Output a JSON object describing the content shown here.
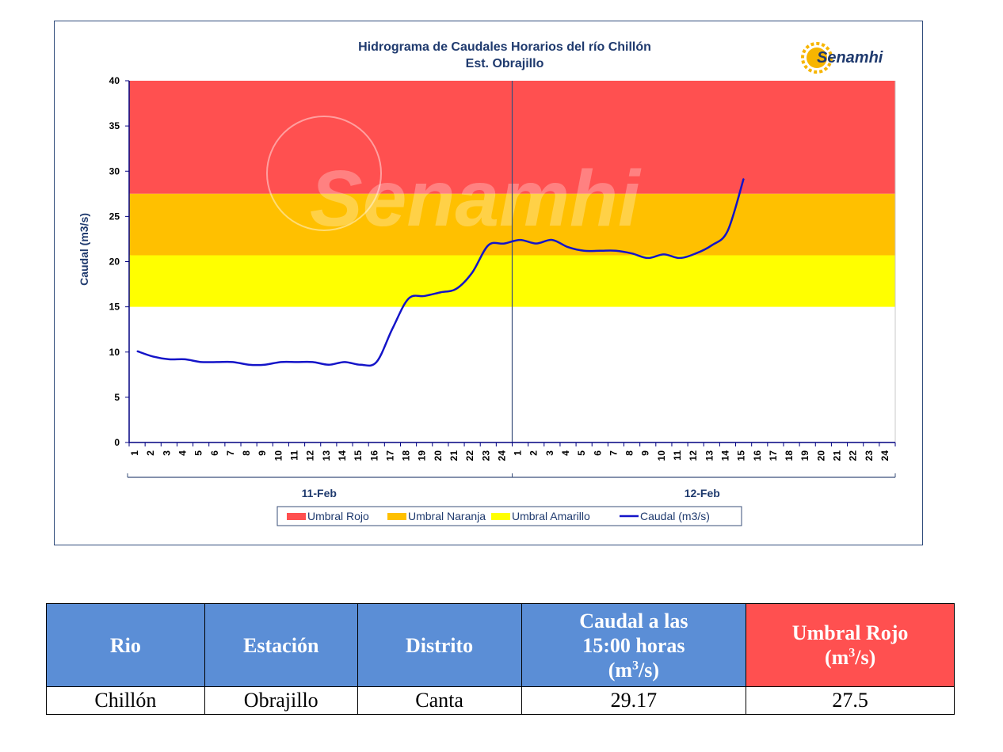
{
  "chart_data": {
    "type": "line",
    "title": "Hidrograma de Caudales Horarios del río Chillón",
    "subtitle": "Est. Obrajillo",
    "ylabel": "Caudal  (m3/s)",
    "ylim": [
      0,
      40
    ],
    "yticks": [
      0,
      5,
      10,
      15,
      20,
      25,
      30,
      35,
      40
    ],
    "x_tick_labels": [
      "1",
      "2",
      "3",
      "4",
      "5",
      "6",
      "7",
      "8",
      "9",
      "10",
      "11",
      "12",
      "13",
      "14",
      "15",
      "16",
      "17",
      "18",
      "19",
      "20",
      "21",
      "22",
      "23",
      "24",
      "1",
      "2",
      "3",
      "4",
      "5",
      "6",
      "7",
      "8",
      "9",
      "10",
      "11",
      "12",
      "13",
      "14",
      "15",
      "16",
      "17",
      "18",
      "19",
      "20",
      "21",
      "22",
      "23",
      "24"
    ],
    "date_labels": [
      "11-Feb",
      "12-Feb"
    ],
    "threshold_bands": [
      {
        "name": "Umbral Rojo",
        "from": 27.5,
        "to": 40,
        "color": "#ff5050"
      },
      {
        "name": "Umbral Naranja",
        "from": 20.7,
        "to": 27.5,
        "color": "#ffc000"
      },
      {
        "name": "Umbral Amarillo",
        "from": 15,
        "to": 20.7,
        "color": "#ffff00"
      }
    ],
    "series": [
      {
        "name": "Caudal (m3/s)",
        "color": "#1414c8",
        "values": [
          10.1,
          9.5,
          9.2,
          9.2,
          8.9,
          8.9,
          8.9,
          8.6,
          8.6,
          8.9,
          8.9,
          8.9,
          8.6,
          8.9,
          8.6,
          8.9,
          12.6,
          15.9,
          16.2,
          16.6,
          17.0,
          18.8,
          21.8,
          22.0,
          22.4,
          22.0,
          22.4,
          21.6,
          21.2,
          21.2,
          21.2,
          20.9,
          20.4,
          20.8,
          20.4,
          20.9,
          21.8,
          23.4,
          29.17
        ]
      }
    ],
    "legend": [
      "Umbral Rojo",
      "Umbral Naranja",
      "Umbral Amarillo",
      "Caudal (m3/s)"
    ],
    "legend_placement": "bottom-center",
    "grid": false
  },
  "logo": {
    "text": "Senamhi"
  },
  "watermark": {
    "text": "Senamhi"
  },
  "table": {
    "headers": [
      "Rio",
      "Estación",
      "Distrito",
      "Caudal a las 15:00 horas (m3/s)",
      "Umbral Rojo (m3/s)"
    ],
    "header_lines": {
      "caudal_1": "Caudal a las",
      "caudal_2": "15:00 horas",
      "caudal_3_pre": "(m",
      "caudal_3_sup": "3",
      "caudal_3_post": "/s)",
      "umbral_1": "Umbral Rojo",
      "umbral_2_pre": "(m",
      "umbral_2_sup": "3",
      "umbral_2_post": "/s)"
    },
    "row": {
      "rio": "Chillón",
      "estacion": "Obrajillo",
      "distrito": "Canta",
      "caudal": "29.17",
      "umbral": "27.5"
    }
  }
}
